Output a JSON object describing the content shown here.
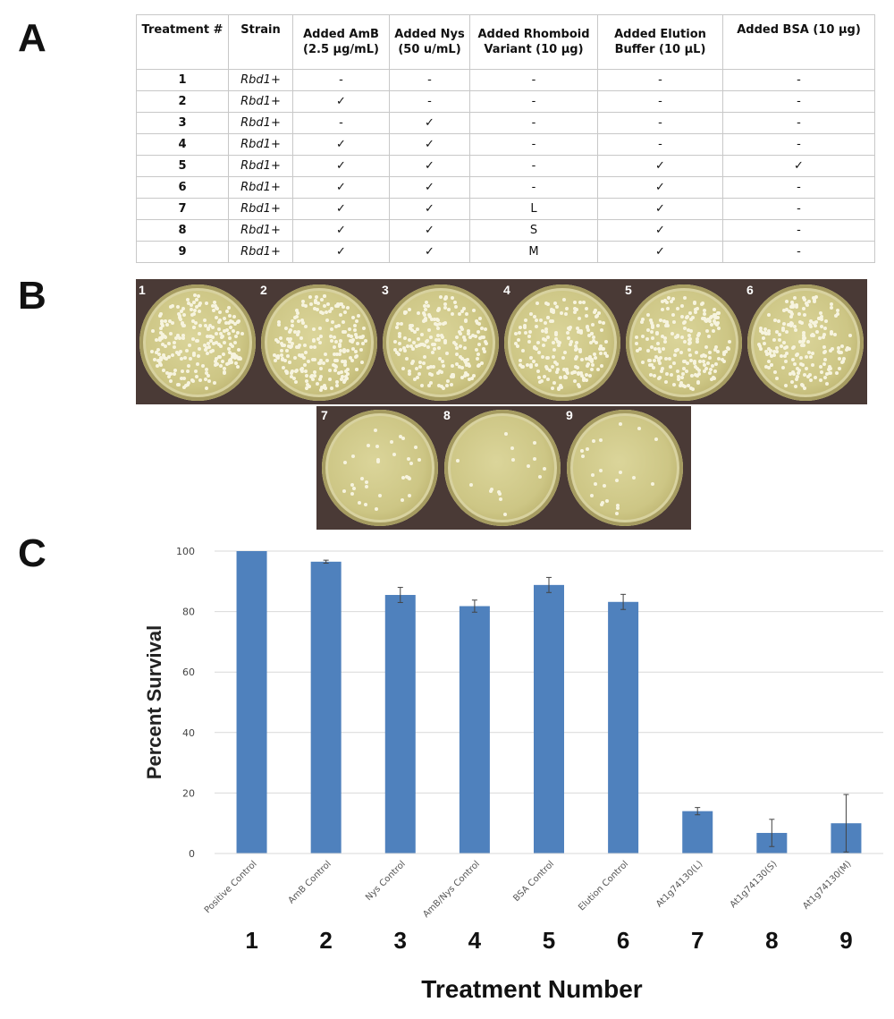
{
  "panels": {
    "a": "A",
    "b": "B",
    "c": "C"
  },
  "table": {
    "headers": [
      {
        "line1": "Treatment #",
        "line2": ""
      },
      {
        "line1": "Strain",
        "line2": ""
      },
      {
        "line1": "Added AmB",
        "line2": "(2.5 µg/mL)"
      },
      {
        "line1": "Added Nys",
        "line2": "(50 u/mL)"
      },
      {
        "line1": "Added Rhomboid",
        "line2": "Variant (10 µg)"
      },
      {
        "line1": "Added Elution",
        "line2": "Buffer (10 µL)"
      },
      {
        "line1": "Added BSA (10 µg)",
        "line2": ""
      }
    ],
    "rows": [
      [
        "1",
        "Rbd1+",
        "-",
        "-",
        "-",
        "-",
        "-"
      ],
      [
        "2",
        "Rbd1+",
        "✓",
        "-",
        "-",
        "-",
        "-"
      ],
      [
        "3",
        "Rbd1+",
        "-",
        "✓",
        "-",
        "-",
        "-"
      ],
      [
        "4",
        "Rbd1+",
        "✓",
        "✓",
        "-",
        "-",
        "-"
      ],
      [
        "5",
        "Rbd1+",
        "✓",
        "✓",
        "-",
        "✓",
        "✓"
      ],
      [
        "6",
        "Rbd1+",
        "✓",
        "✓",
        "-",
        "✓",
        "-"
      ],
      [
        "7",
        "Rbd1+",
        "✓",
        "✓",
        "L",
        "✓",
        "-"
      ],
      [
        "8",
        "Rbd1+",
        "✓",
        "✓",
        "S",
        "✓",
        "-"
      ],
      [
        "9",
        "Rbd1+",
        "✓",
        "✓",
        "M",
        "✓",
        "-"
      ]
    ]
  },
  "plates": {
    "labels": [
      "1",
      "2",
      "3",
      "4",
      "5",
      "6",
      "7",
      "8",
      "9"
    ],
    "relative_colony_density": [
      1.0,
      0.96,
      0.85,
      0.82,
      0.89,
      0.83,
      0.14,
      0.07,
      0.1
    ]
  },
  "chart_data": {
    "type": "bar",
    "ylabel": "Percent Survival",
    "xlabel": "Treatment Number",
    "ylim": [
      0,
      100
    ],
    "yticks": [
      "0",
      "20",
      "40",
      "60",
      "80",
      "100"
    ],
    "grid": true,
    "categories": [
      "Positive Control",
      "AmB Control",
      "Nys Control",
      "AmB/Nys Control",
      "BSA Control",
      "Elution Control",
      "At1g74130(L)",
      "At1g74130(S)",
      "At1g74130(M)"
    ],
    "treatment_numbers": [
      "1",
      "2",
      "3",
      "4",
      "5",
      "6",
      "7",
      "8",
      "9"
    ],
    "values": [
      100,
      96.5,
      85.5,
      81.8,
      88.8,
      83.2,
      14,
      6.8,
      10
    ],
    "errors": [
      0,
      0.5,
      2.5,
      2,
      2.5,
      2.5,
      1.2,
      4.5,
      9.5
    ],
    "bar_color": "#4f81bd"
  }
}
